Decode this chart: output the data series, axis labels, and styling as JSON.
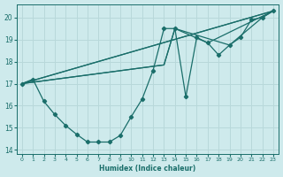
{
  "xlabel": "Humidex (Indice chaleur)",
  "xlim": [
    -0.5,
    23.5
  ],
  "ylim": [
    13.8,
    20.6
  ],
  "yticks": [
    14,
    15,
    16,
    17,
    18,
    19,
    20
  ],
  "xticks": [
    0,
    1,
    2,
    3,
    4,
    5,
    6,
    7,
    8,
    9,
    10,
    11,
    12,
    13,
    14,
    15,
    16,
    17,
    18,
    19,
    20,
    21,
    22,
    23
  ],
  "bg_color": "#ceeaec",
  "line_color": "#1a6e6a",
  "grid_color": "#b8d8da",
  "series_main_x": [
    0,
    1,
    2,
    3,
    4,
    5,
    6,
    7,
    8,
    9,
    10,
    11,
    12,
    13,
    14,
    15,
    16,
    17,
    18,
    19,
    20,
    21,
    22,
    23
  ],
  "series_main_y": [
    17.0,
    17.2,
    16.2,
    15.6,
    15.1,
    14.7,
    14.35,
    14.35,
    14.35,
    14.65,
    15.5,
    16.3,
    17.6,
    19.5,
    19.5,
    16.4,
    19.1,
    18.85,
    18.3,
    18.75,
    19.1,
    19.9,
    20.0,
    20.3
  ],
  "line1_x": [
    0,
    23
  ],
  "line1_y": [
    17.0,
    20.3
  ],
  "line2_x": [
    0,
    23
  ],
  "line2_y": [
    17.0,
    20.3
  ],
  "line3_x": [
    0,
    13,
    14,
    17,
    23
  ],
  "line3_y": [
    17.0,
    17.85,
    19.5,
    18.85,
    20.3
  ],
  "line4_x": [
    0,
    13,
    14,
    19,
    22,
    23
  ],
  "line4_y": [
    17.0,
    17.85,
    19.5,
    18.75,
    20.0,
    20.3
  ]
}
